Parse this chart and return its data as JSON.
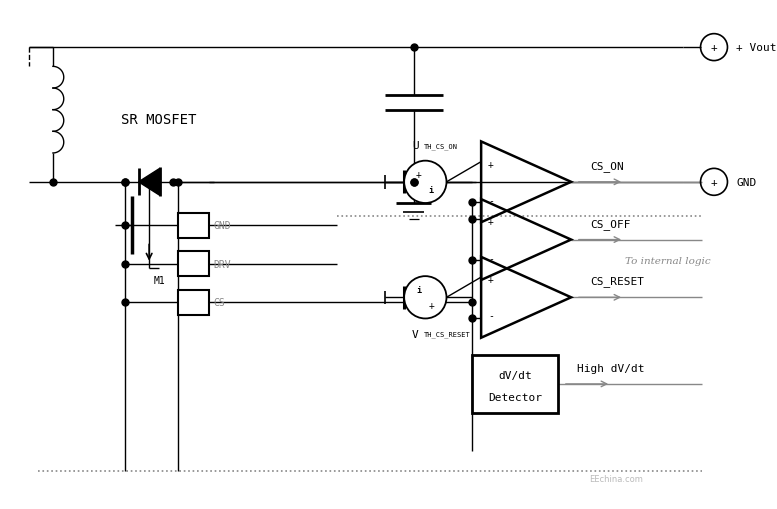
{
  "bg_color": "#ffffff",
  "line_color": "#000000",
  "gray_color": "#888888",
  "figsize": [
    7.77,
    5.1
  ],
  "dpi": 100,
  "labels": {
    "sr_mosfet": "SR MOSFET",
    "m1": "M1",
    "gnd_label": "GND",
    "drv_label": "DRV",
    "cs_label": "CS",
    "cs_on": "CS_ON",
    "cs_off": "CS_OFF",
    "cs_reset": "CS_RESET",
    "to_internal": "To internal logic",
    "high_dvdt": "High dV/dt",
    "dvdt_line1": "dV/dt",
    "dvdt_line2": "Detector",
    "vout": "+ Vout",
    "gnd_right": "GND",
    "u_th_cs_on_main": "U",
    "u_th_cs_on_sub": "TH_CS_ON",
    "v_th_cs_reset_main": "V",
    "v_th_cs_reset_sub": "TH_CS_RESET"
  }
}
